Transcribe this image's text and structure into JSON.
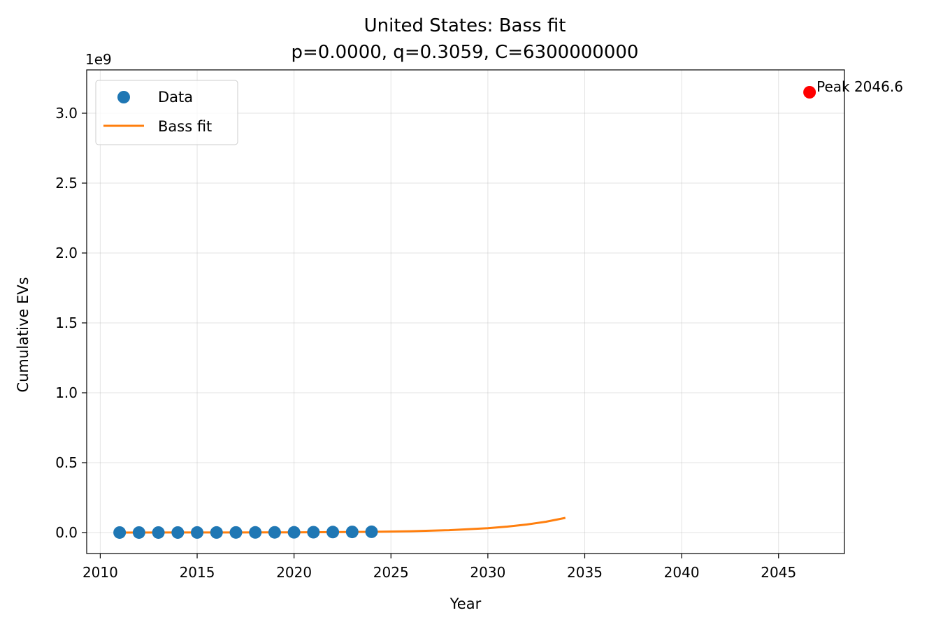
{
  "chart_data": {
    "type": "scatter",
    "title": "United States: Bass fit",
    "subtitle": "p=0.0000, q=0.3059, C=6300000000",
    "xlabel": "Year",
    "ylabel": "Cumulative EVs",
    "y_scale_label": "1e9",
    "y_multiplier": 1000000000,
    "xlim": [
      2009.3,
      2048.4
    ],
    "ylim": [
      -0.15,
      3.31
    ],
    "x_ticks": [
      2010,
      2015,
      2020,
      2025,
      2030,
      2035,
      2040,
      2045
    ],
    "y_ticks": [
      0.0,
      0.5,
      1.0,
      1.5,
      2.0,
      2.5,
      3.0
    ],
    "y_tick_labels": [
      "0.0",
      "0.5",
      "1.0",
      "1.5",
      "2.0",
      "2.5",
      "3.0"
    ],
    "grid": true,
    "legend_position": "upper-left",
    "series": [
      {
        "name": "Data",
        "kind": "scatter",
        "color": "#1f77b4",
        "x": [
          2011,
          2012,
          2013,
          2014,
          2015,
          2016,
          2017,
          2018,
          2019,
          2020,
          2021,
          2022,
          2023,
          2024
        ],
        "y": [
          2e-05,
          7e-05,
          0.0002,
          0.0003,
          0.0004,
          0.0006,
          0.0008,
          0.0011,
          0.0014,
          0.0018,
          0.0025,
          0.0035,
          0.0045,
          0.0055
        ]
      },
      {
        "name": "Bass fit",
        "kind": "line",
        "color": "#ff7f0e",
        "x": [
          2011,
          2014,
          2017,
          2020,
          2022,
          2024,
          2026,
          2028,
          2030,
          2031,
          2032,
          2033,
          2034
        ],
        "y": [
          0.0001,
          0.0003,
          0.0007,
          0.0016,
          0.0029,
          0.0051,
          0.0093,
          0.0171,
          0.0314,
          0.0424,
          0.0575,
          0.0777,
          0.1049
        ]
      }
    ],
    "annotations": [
      {
        "text": "Peak 2046.6",
        "x": 2046.6,
        "y": 3.15,
        "color": "#ff0000"
      }
    ]
  }
}
